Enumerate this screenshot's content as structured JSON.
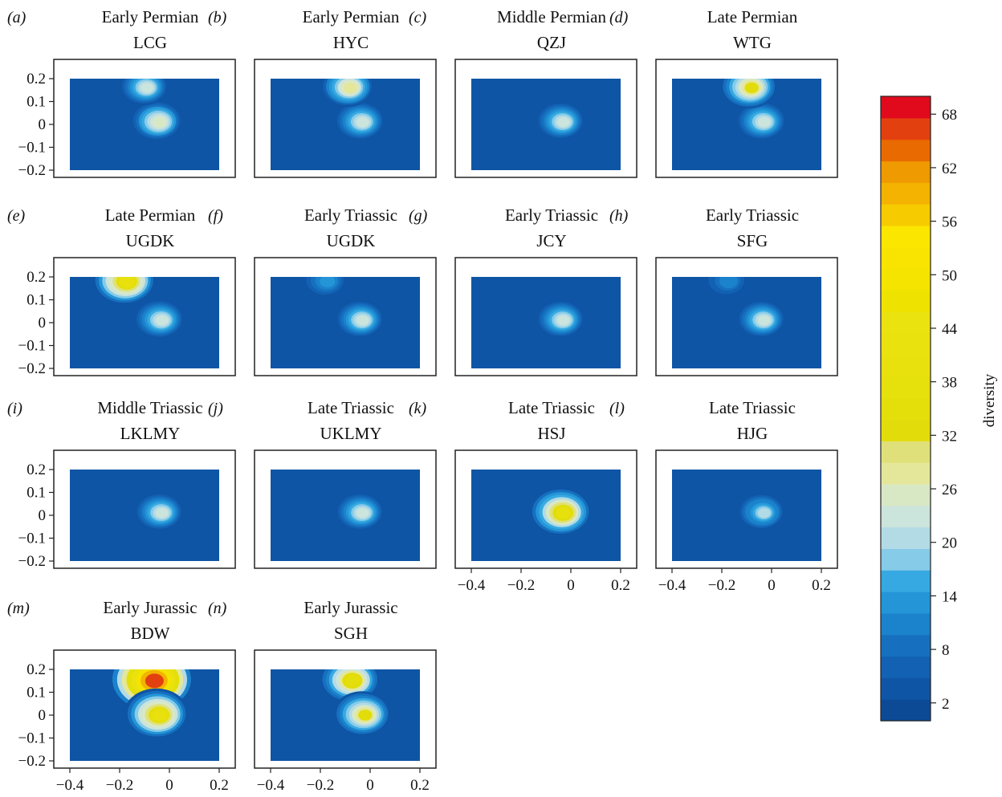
{
  "chart_data": {
    "type": "heatmap",
    "colorbar": {
      "label": "diversity",
      "ticks": [
        2,
        8,
        14,
        20,
        26,
        32,
        38,
        44,
        50,
        56,
        62,
        68
      ],
      "range": [
        0,
        70
      ]
    },
    "axes": {
      "x_ticks": [
        "−0.4",
        "−0.2",
        "0",
        "0.2"
      ],
      "x_tick_values": [
        -0.4,
        -0.2,
        0,
        0.2
      ],
      "y_ticks": [
        "0.2",
        "0.1",
        "0",
        "−0.1",
        "−0.2"
      ],
      "y_tick_values": [
        0.2,
        0.1,
        0,
        -0.1,
        -0.2
      ],
      "xlim": [
        -0.4,
        0.2
      ],
      "ylim": [
        -0.2,
        0.2
      ]
    },
    "panels": [
      {
        "letter": "(a)",
        "period": "Early Permian",
        "site": "LCG",
        "hotspots": [
          {
            "x": -0.04,
            "y": 0.01,
            "value": 26
          },
          {
            "x": -0.09,
            "y": 0.16,
            "value": 22
          }
        ]
      },
      {
        "letter": "(b)",
        "period": "Early Permian",
        "site": "HYC",
        "hotspots": [
          {
            "x": -0.03,
            "y": 0.01,
            "value": 24
          },
          {
            "x": -0.08,
            "y": 0.16,
            "value": 28
          }
        ]
      },
      {
        "letter": "(c)",
        "period": "Middle Permian",
        "site": "QZJ",
        "hotspots": [
          {
            "x": -0.03,
            "y": 0.01,
            "value": 22
          }
        ]
      },
      {
        "letter": "(d)",
        "period": "Late Permian",
        "site": "WTG",
        "hotspots": [
          {
            "x": -0.03,
            "y": 0.01,
            "value": 24
          },
          {
            "x": -0.08,
            "y": 0.16,
            "value": 32
          }
        ]
      },
      {
        "letter": "(e)",
        "period": "Late Permian",
        "site": "UGDK",
        "hotspots": [
          {
            "x": -0.03,
            "y": 0.01,
            "value": 24
          },
          {
            "x": -0.17,
            "y": 0.18,
            "value": 40
          }
        ]
      },
      {
        "letter": "(f)",
        "period": "Early Triassic",
        "site": "UGDK",
        "hotspots": [
          {
            "x": -0.03,
            "y": 0.01,
            "value": 22
          },
          {
            "x": -0.17,
            "y": 0.18,
            "value": 14
          }
        ]
      },
      {
        "letter": "(g)",
        "period": "Early Triassic",
        "site": "JCY",
        "hotspots": [
          {
            "x": -0.03,
            "y": 0.01,
            "value": 22
          }
        ]
      },
      {
        "letter": "(h)",
        "period": "Early Triassic",
        "site": "SFG",
        "hotspots": [
          {
            "x": -0.03,
            "y": 0.01,
            "value": 22
          },
          {
            "x": -0.17,
            "y": 0.18,
            "value": 12
          }
        ]
      },
      {
        "letter": "(i)",
        "period": "Middle Triassic",
        "site": "LKLMY",
        "hotspots": [
          {
            "x": -0.03,
            "y": 0.01,
            "value": 22
          }
        ]
      },
      {
        "letter": "(j)",
        "period": "Late Triassic",
        "site": "UKLMY",
        "hotspots": [
          {
            "x": -0.03,
            "y": 0.01,
            "value": 22
          }
        ]
      },
      {
        "letter": "(k)",
        "period": "Late Triassic",
        "site": "HSJ",
        "hotspots": [
          {
            "x": -0.03,
            "y": 0.01,
            "value": 38
          }
        ]
      },
      {
        "letter": "(l)",
        "period": "Late Triassic",
        "site": "HJG",
        "hotspots": [
          {
            "x": -0.03,
            "y": 0.01,
            "value": 20
          }
        ]
      },
      {
        "letter": "(m)",
        "period": "Early Jurassic",
        "site": "BDW",
        "hotspots": [
          {
            "x": -0.06,
            "y": 0.15,
            "value": 66
          },
          {
            "x": -0.04,
            "y": 0.0,
            "value": 40
          }
        ]
      },
      {
        "letter": "(n)",
        "period": "Early Jurassic",
        "site": "SGH",
        "hotspots": [
          {
            "x": -0.07,
            "y": 0.15,
            "value": 36
          },
          {
            "x": -0.02,
            "y": 0.0,
            "value": 32
          }
        ]
      }
    ]
  }
}
